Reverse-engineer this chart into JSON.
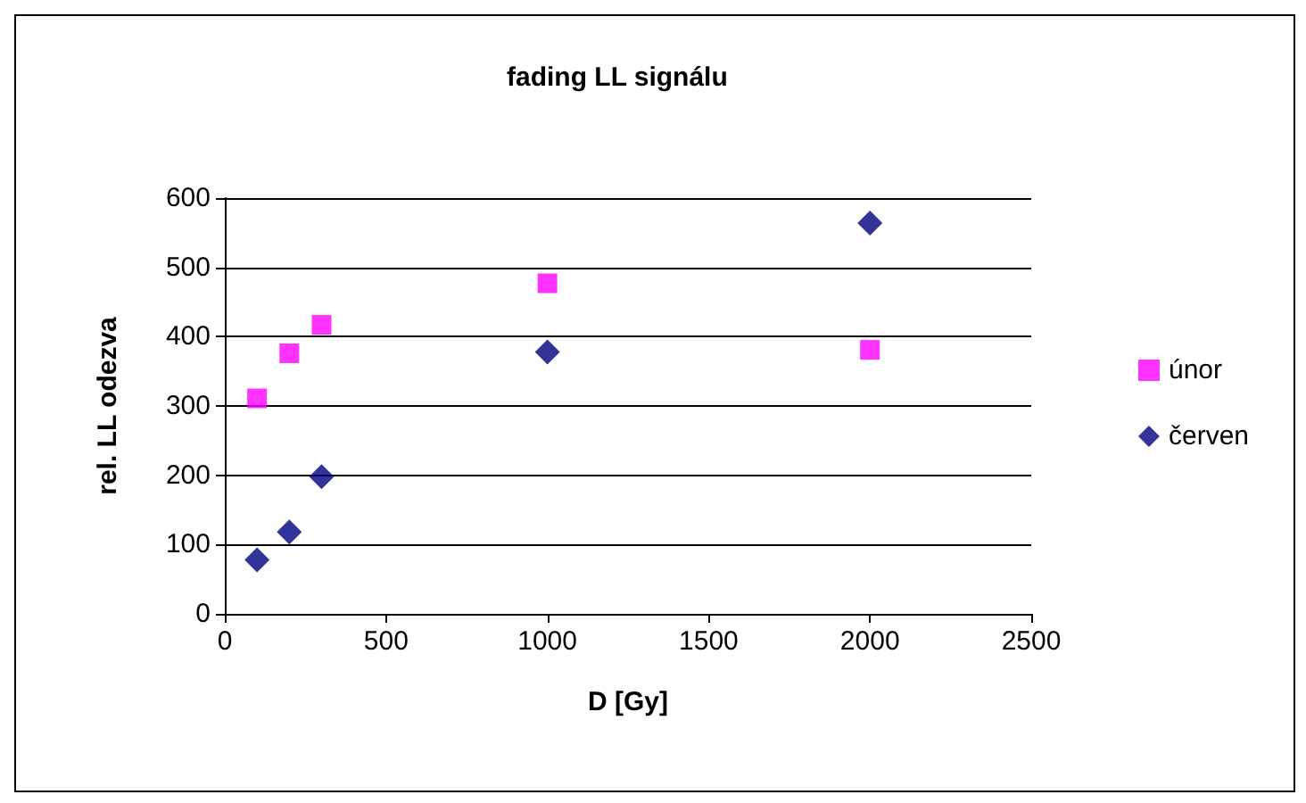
{
  "chart_data": {
    "type": "scatter",
    "title": "fading LL signálu",
    "xlabel": "D [Gy]",
    "ylabel": "rel. LL odezva",
    "x": [
      100,
      200,
      300,
      1000,
      2000
    ],
    "series": [
      {
        "name": "únor",
        "color": "#ff00ff",
        "marker": "square",
        "values": [
          311,
          376,
          417,
          477,
          381
        ]
      },
      {
        "name": "červen",
        "color": "#000080",
        "marker": "diamond",
        "values": [
          78,
          118,
          198,
          378,
          564
        ]
      }
    ],
    "xlim": [
      0,
      2500
    ],
    "xticks": [
      0,
      500,
      1000,
      1500,
      2000,
      2500
    ],
    "ylim": [
      0,
      600
    ],
    "yticks": [
      0,
      100,
      200,
      300,
      400,
      500,
      600
    ],
    "grid": "y",
    "legend": "right"
  }
}
